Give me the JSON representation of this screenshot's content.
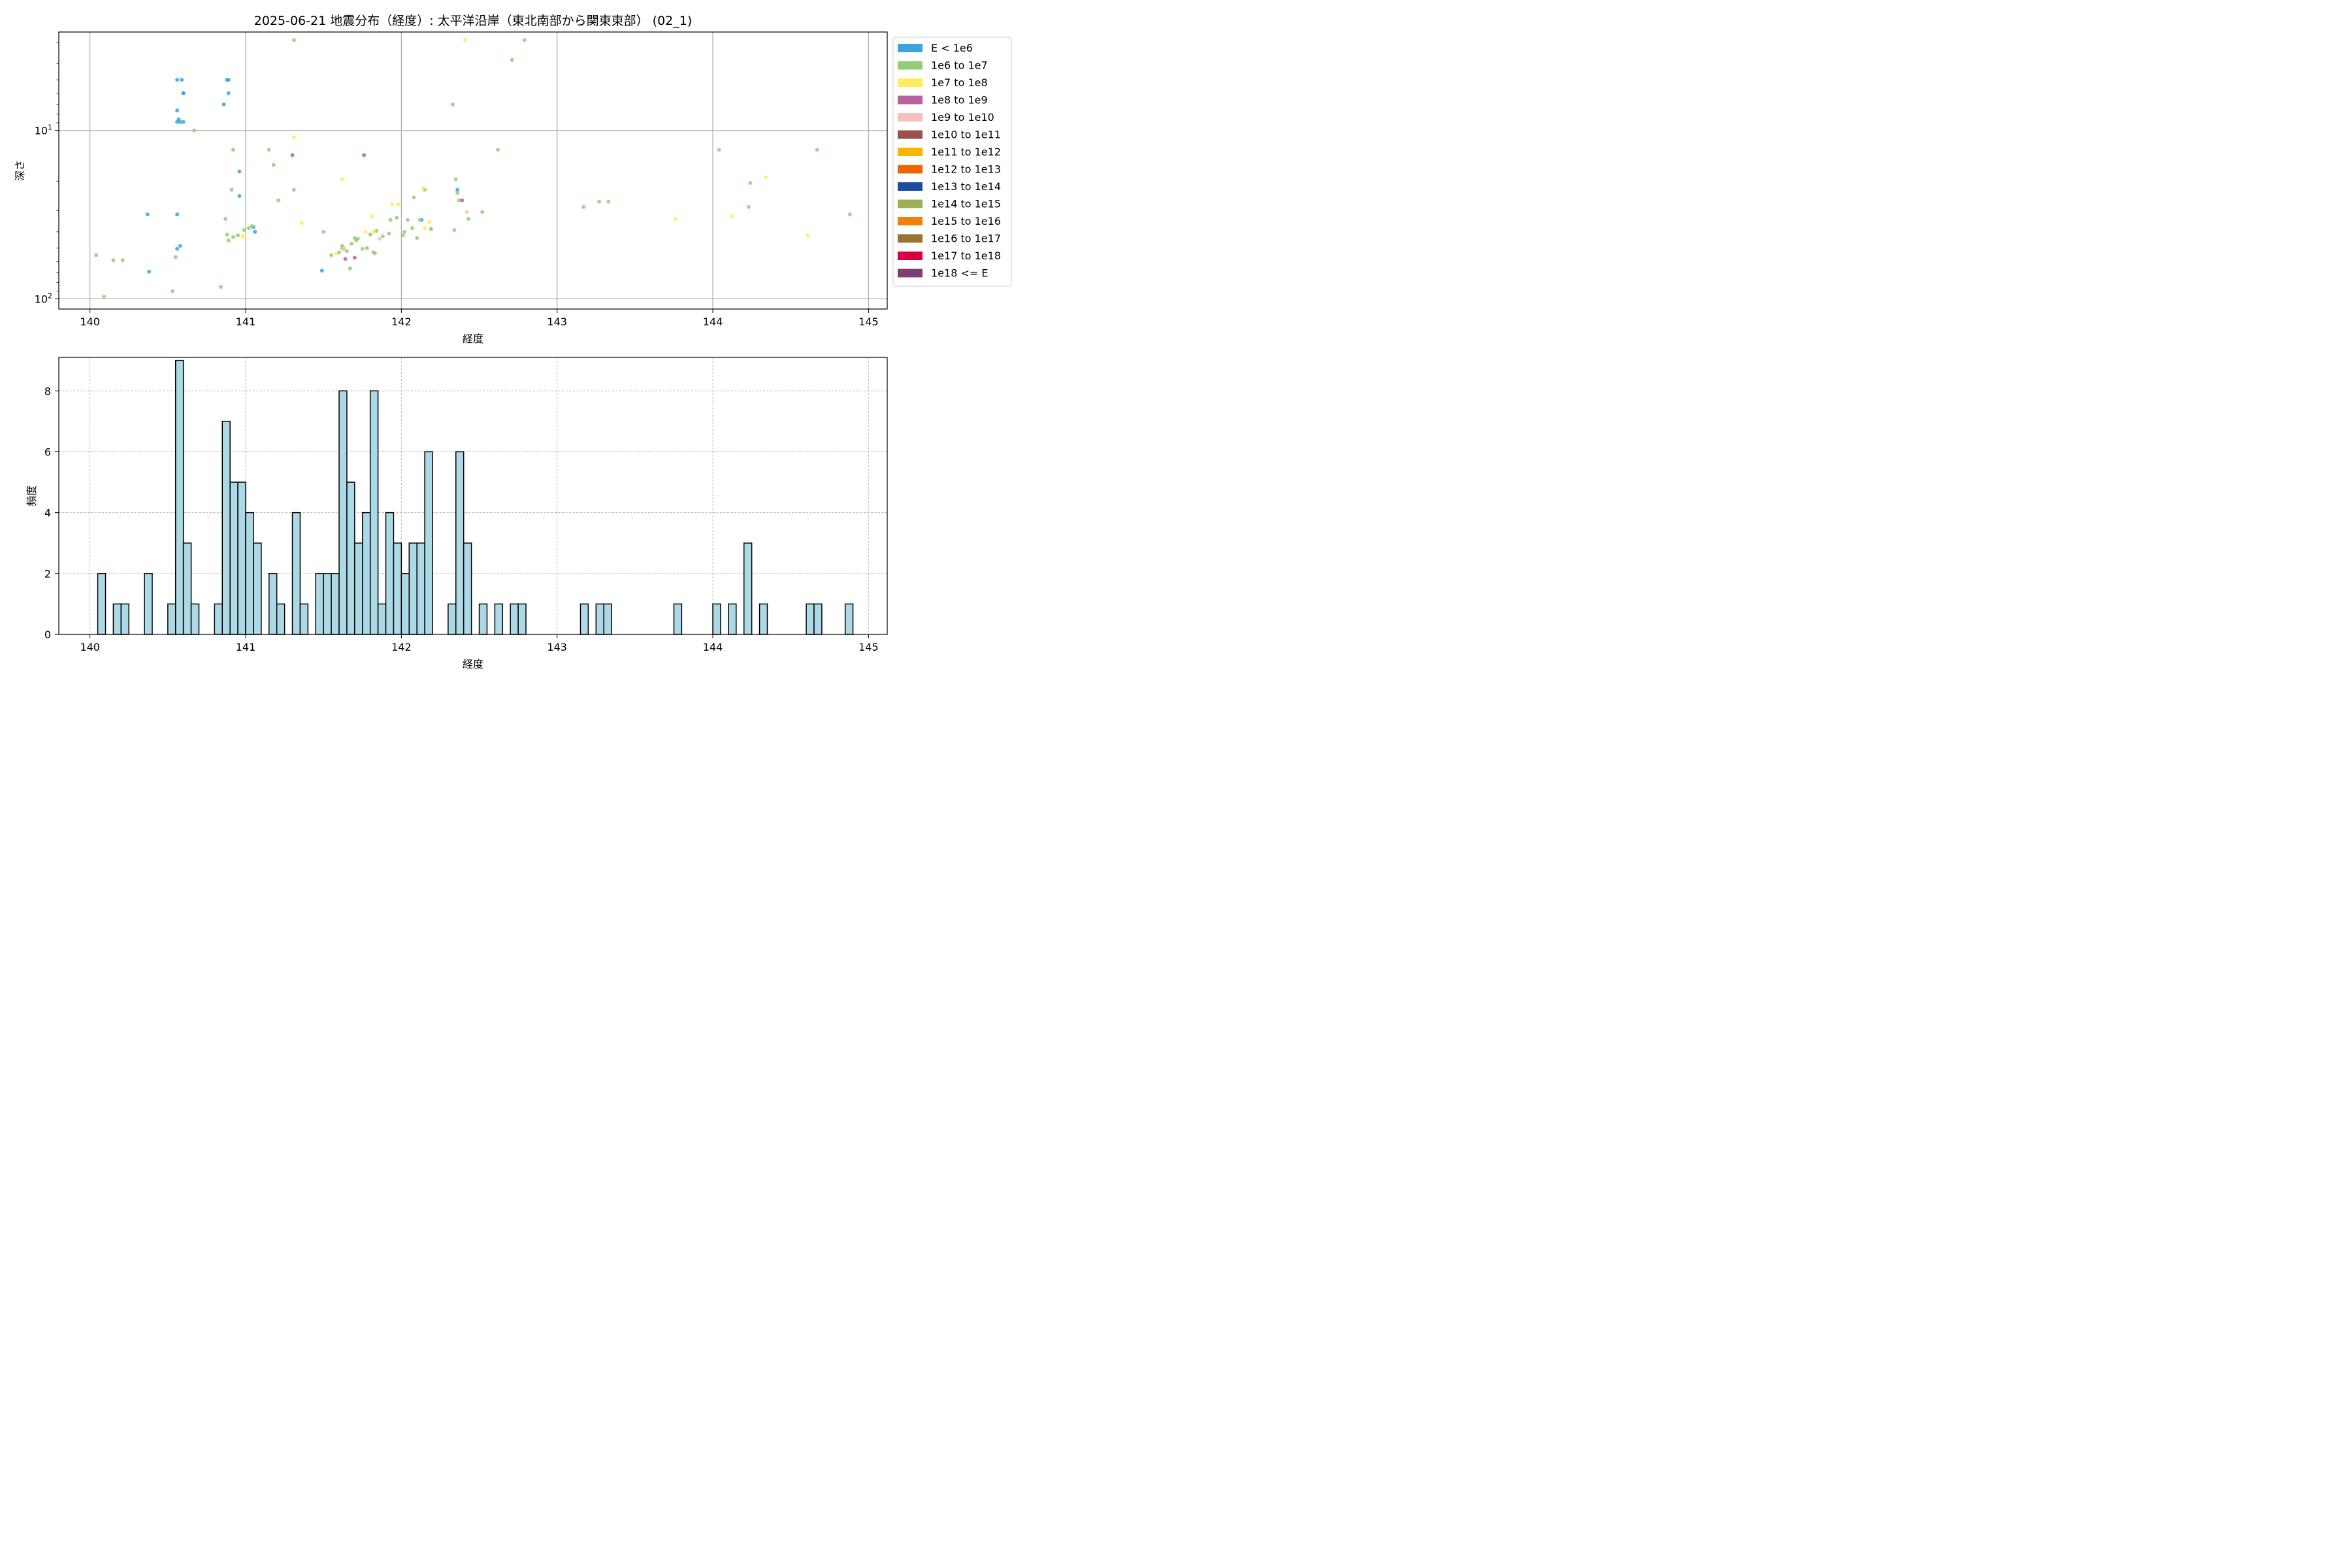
{
  "figure": {
    "title": "2025-06-21 地震分布（経度）: 太平洋沿岸（東北南部から関東東部） (02_1)"
  },
  "chart_data": [
    {
      "type": "scatter",
      "title": "2025-06-21 地震分布（経度）: 太平洋沿岸（東北南部から関東東部） (02_1)",
      "xlabel": "経度",
      "ylabel": "深さ",
      "x_ticks": [
        "140",
        "141",
        "142",
        "143",
        "144",
        "145"
      ],
      "y_ticks": [
        {
          "value": 10,
          "base": "10",
          "exp": "1"
        },
        {
          "value": 100,
          "base": "10",
          "exp": "2"
        }
      ],
      "xlim": [
        139.8,
        145.12
      ],
      "ylim": [
        115,
        2.6
      ],
      "y_scale": "log",
      "y_inverted": true,
      "grid": true,
      "legend": {
        "placement": "outside-right",
        "entries": [
          {
            "label": "E < 1e6",
            "color": "#3fa3dc"
          },
          {
            "label": "1e6 to 1e7",
            "color": "#95cc79"
          },
          {
            "label": "1e7 to 1e8",
            "color": "#fdec5e"
          },
          {
            "label": "1e8 to 1e9",
            "color": "#b761a3"
          },
          {
            "label": "1e9 to 1e10",
            "color": "#f5bfbd"
          },
          {
            "label": "1e10 to 1e11",
            "color": "#9c4f4d"
          },
          {
            "label": "1e11 to 1e12",
            "color": "#f7b500"
          },
          {
            "label": "1e12 to 1e13",
            "color": "#ee6400"
          },
          {
            "label": "1e13 to 1e14",
            "color": "#1b4b9c"
          },
          {
            "label": "1e14 to 1e15",
            "color": "#9cb053"
          },
          {
            "label": "1e15 to 1e16",
            "color": "#f1800e"
          },
          {
            "label": "1e16 to 1e17",
            "color": "#997430"
          },
          {
            "label": "1e17 to 1e18",
            "color": "#d8003e"
          },
          {
            "label": "1e18 <= E",
            "color": "#7b3f72"
          }
        ]
      },
      "series": [
        {
          "name": "E < 1e6",
          "color": "#3fa3dc",
          "points": [
            [
              140.56,
              5.0
            ],
            [
              140.59,
              5.0
            ],
            [
              140.6,
              6.0
            ],
            [
              140.6,
              6.0
            ],
            [
              140.56,
              7.6
            ],
            [
              140.57,
              8.6
            ],
            [
              140.56,
              8.9
            ],
            [
              140.58,
              8.9
            ],
            [
              140.6,
              8.9
            ],
            [
              140.88,
              5.0
            ],
            [
              140.89,
              5.0
            ],
            [
              140.89,
              6.0
            ],
            [
              140.86,
              7.0
            ],
            [
              140.96,
              17.5
            ],
            [
              140.96,
              24.5
            ],
            [
              140.37,
              31.5
            ],
            [
              140.56,
              31.5
            ],
            [
              140.56,
              50.5
            ],
            [
              140.58,
              48.5
            ],
            [
              140.38,
              69.0
            ],
            [
              141.05,
              37.5
            ],
            [
              141.06,
              40.0
            ],
            [
              142.13,
              34.0
            ],
            [
              142.36,
              22.5
            ],
            [
              141.49,
              68.0
            ]
          ]
        },
        {
          "name": "1e6 to 1e7",
          "color": "#95cc79",
          "points": [
            [
              141.31,
              2.9
            ],
            [
              142.79,
              2.9
            ],
            [
              142.71,
              3.8
            ],
            [
              142.33,
              7.0
            ],
            [
              140.67,
              10.0
            ],
            [
              140.92,
              13.0
            ],
            [
              141.15,
              13.0
            ],
            [
              141.18,
              16.0
            ],
            [
              142.62,
              13.0
            ],
            [
              144.04,
              13.0
            ],
            [
              144.67,
              13.0
            ],
            [
              140.91,
              22.5
            ],
            [
              141.31,
              22.5
            ],
            [
              141.21,
              26.0
            ],
            [
              142.35,
              19.5
            ],
            [
              142.36,
              23.5
            ],
            [
              142.37,
              26.0
            ],
            [
              142.08,
              25.0
            ],
            [
              142.15,
              22.5
            ],
            [
              142.52,
              30.5
            ],
            [
              142.43,
              33.5
            ],
            [
              142.34,
              39.0
            ],
            [
              142.19,
              38.5
            ],
            [
              143.17,
              28.5
            ],
            [
              143.27,
              26.5
            ],
            [
              143.33,
              26.5
            ],
            [
              144.24,
              20.5
            ],
            [
              144.23,
              28.5
            ],
            [
              144.88,
              31.5
            ],
            [
              140.87,
              33.5
            ],
            [
              140.88,
              41.5
            ],
            [
              140.92,
              43.0
            ],
            [
              140.95,
              42.0
            ],
            [
              140.89,
              45.0
            ],
            [
              140.99,
              39.0
            ],
            [
              141.02,
              38.0
            ],
            [
              141.04,
              37.0
            ],
            [
              141.5,
              40.0
            ],
            [
              141.55,
              55.0
            ],
            [
              141.62,
              48.5
            ],
            [
              141.62,
              50.0
            ],
            [
              141.6,
              53.0
            ],
            [
              141.63,
              50.0
            ],
            [
              141.65,
              52.0
            ],
            [
              141.68,
              47.0
            ],
            [
              141.71,
              45.0
            ],
            [
              141.72,
              44.0
            ],
            [
              141.7,
              43.5
            ],
            [
              141.75,
              50.5
            ],
            [
              141.78,
              50.0
            ],
            [
              141.8,
              41.5
            ],
            [
              141.82,
              53.0
            ],
            [
              141.83,
              53.5
            ],
            [
              141.84,
              39.5
            ],
            [
              141.88,
              42.5
            ],
            [
              141.92,
              41.0
            ],
            [
              141.93,
              34.0
            ],
            [
              141.97,
              33.0
            ],
            [
              142.01,
              42.0
            ],
            [
              142.02,
              40.0
            ],
            [
              142.04,
              34.0
            ],
            [
              142.07,
              38.0
            ],
            [
              142.1,
              43.5
            ],
            [
              142.12,
              34.0
            ],
            [
              142.19,
              38.5
            ],
            [
              141.67,
              66.0
            ],
            [
              140.04,
              55.0
            ],
            [
              140.15,
              59.0
            ],
            [
              140.21,
              59.0
            ],
            [
              140.53,
              90.0
            ],
            [
              140.84,
              85.0
            ],
            [
              140.09,
              97.0
            ],
            [
              140.55,
              56.5
            ]
          ]
        },
        {
          "name": "1e7 to 1e8",
          "color": "#fdec5e",
          "points": [
            [
              142.41,
              2.9
            ],
            [
              141.31,
              11.0
            ],
            [
              141.62,
              19.5
            ],
            [
              142.14,
              22.0
            ],
            [
              141.36,
              35.5
            ],
            [
              141.94,
              27.5
            ],
            [
              141.98,
              27.5
            ],
            [
              141.81,
              32.5
            ],
            [
              142.18,
              35.0
            ],
            [
              141.77,
              40.0
            ],
            [
              141.82,
              40.0
            ],
            [
              142.15,
              38.0
            ],
            [
              140.98,
              42.5
            ],
            [
              140.99,
              42.5
            ],
            [
              141.58,
              54.0
            ],
            [
              141.63,
              50.5
            ],
            [
              143.76,
              33.5
            ],
            [
              144.12,
              32.5
            ],
            [
              144.34,
              19.0
            ],
            [
              144.61,
              42.0
            ]
          ]
        },
        {
          "name": "1e8 to 1e9",
          "color": "#b761a3",
          "points": [
            [
              141.3,
              14.0
            ],
            [
              141.76,
              14.0
            ],
            [
              142.39,
              26.0
            ],
            [
              141.64,
              58.0
            ],
            [
              141.7,
              57.0
            ]
          ]
        },
        {
          "name": "1e9 to 1e10",
          "color": "#f5bfbd",
          "points": [
            [
              142.42,
              30.5
            ],
            [
              141.86,
              44.0
            ],
            [
              141.63,
              51.0
            ]
          ]
        },
        {
          "name": "1e10 to 1e11",
          "color": "#9c4f4d",
          "points": []
        },
        {
          "name": "1e11 to 1e12",
          "color": "#f7b500",
          "points": []
        },
        {
          "name": "1e12 to 1e13",
          "color": "#ee6400",
          "points": []
        },
        {
          "name": "1e13 to 1e14",
          "color": "#1b4b9c",
          "points": []
        },
        {
          "name": "1e14 to 1e15",
          "color": "#9cb053",
          "points": []
        },
        {
          "name": "1e15 to 1e16",
          "color": "#f1800e",
          "points": []
        },
        {
          "name": "1e16 to 1e17",
          "color": "#997430",
          "points": []
        },
        {
          "name": "1e17 to 1e18",
          "color": "#d8003e",
          "points": []
        },
        {
          "name": "1e18 <= E",
          "color": "#7b3f72",
          "points": []
        }
      ]
    },
    {
      "type": "bar",
      "xlabel": "経度",
      "ylabel": "頻度",
      "x_ticks": [
        "140",
        "141",
        "142",
        "143",
        "144",
        "145"
      ],
      "y_ticks": [
        "0",
        "2",
        "4",
        "6",
        "8"
      ],
      "xlim": [
        139.8,
        145.12
      ],
      "ylim": [
        0,
        9.1
      ],
      "grid": true,
      "bar_color": "#add8e6",
      "edge_color": "#000000",
      "bin_width": 0.05,
      "bins": [
        [
          140.05,
          2
        ],
        [
          140.15,
          1
        ],
        [
          140.2,
          1
        ],
        [
          140.35,
          2
        ],
        [
          140.5,
          1
        ],
        [
          140.55,
          9
        ],
        [
          140.6,
          3
        ],
        [
          140.65,
          1
        ],
        [
          140.8,
          1
        ],
        [
          140.85,
          7
        ],
        [
          140.9,
          5
        ],
        [
          140.95,
          5
        ],
        [
          141.0,
          4
        ],
        [
          141.05,
          3
        ],
        [
          141.15,
          2
        ],
        [
          141.2,
          1
        ],
        [
          141.3,
          4
        ],
        [
          141.35,
          1
        ],
        [
          141.45,
          2
        ],
        [
          141.5,
          2
        ],
        [
          141.55,
          2
        ],
        [
          141.6,
          8
        ],
        [
          141.65,
          5
        ],
        [
          141.7,
          3
        ],
        [
          141.75,
          4
        ],
        [
          141.8,
          8
        ],
        [
          141.85,
          1
        ],
        [
          141.9,
          4
        ],
        [
          141.95,
          3
        ],
        [
          142.0,
          2
        ],
        [
          142.05,
          3
        ],
        [
          142.1,
          3
        ],
        [
          142.15,
          6
        ],
        [
          142.3,
          1
        ],
        [
          142.35,
          6
        ],
        [
          142.4,
          3
        ],
        [
          142.5,
          1
        ],
        [
          142.6,
          1
        ],
        [
          142.7,
          1
        ],
        [
          142.75,
          1
        ],
        [
          143.15,
          1
        ],
        [
          143.25,
          1
        ],
        [
          143.3,
          1
        ],
        [
          143.75,
          1
        ],
        [
          144.0,
          1
        ],
        [
          144.1,
          1
        ],
        [
          144.2,
          3
        ],
        [
          144.3,
          1
        ],
        [
          144.6,
          1
        ],
        [
          144.65,
          1
        ],
        [
          144.85,
          1
        ]
      ]
    }
  ]
}
